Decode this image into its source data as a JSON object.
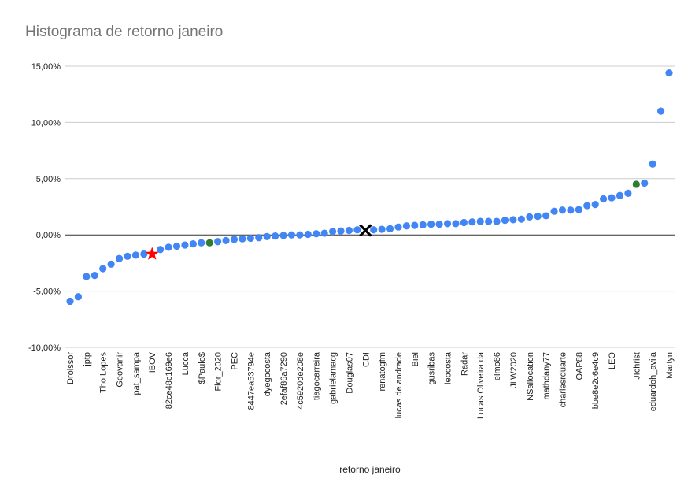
{
  "chart_data": {
    "type": "scatter",
    "title": "Histograma de retorno janeiro",
    "xlabel": "retorno janeiro",
    "ylabel": "",
    "ylim": [
      -10,
      15
    ],
    "yticks": [
      {
        "value": 15,
        "label": "15,00%"
      },
      {
        "value": 10,
        "label": "10,00%"
      },
      {
        "value": 5,
        "label": "5,00%"
      },
      {
        "value": 0,
        "label": "0,00%"
      },
      {
        "value": -5,
        "label": "-5,00%"
      },
      {
        "value": -10,
        "label": "-10,00%"
      }
    ],
    "grid": true,
    "legend": "none",
    "colors": {
      "default": "#4285f4",
      "green": "#2e7d32",
      "ibov": "#ff0000",
      "cdi": "#000000"
    },
    "points": [
      {
        "label": "Droissor",
        "value": -5.9
      },
      {
        "label": "",
        "value": -5.5
      },
      {
        "label": "jptp",
        "value": -3.7
      },
      {
        "label": "",
        "value": -3.6
      },
      {
        "label": "Tho.Lopes",
        "value": -3.0
      },
      {
        "label": "",
        "value": -2.6
      },
      {
        "label": "Geovanir",
        "value": -2.1
      },
      {
        "label": "",
        "value": -1.9
      },
      {
        "label": "pat_sampa",
        "value": -1.8
      },
      {
        "label": "",
        "value": -1.7
      },
      {
        "label": "IBOV",
        "value": -1.7,
        "color": "ibov",
        "marker": "star"
      },
      {
        "label": "",
        "value": -1.3
      },
      {
        "label": "82ce48c169e6",
        "value": -1.1
      },
      {
        "label": "",
        "value": -1.0
      },
      {
        "label": "Lucca",
        "value": -0.9
      },
      {
        "label": "",
        "value": -0.8
      },
      {
        "label": "$Paulo$",
        "value": -0.7
      },
      {
        "label": "",
        "value": -0.7,
        "color": "green"
      },
      {
        "label": "Flor_2020",
        "value": -0.6
      },
      {
        "label": "",
        "value": -0.5
      },
      {
        "label": "PEC",
        "value": -0.4
      },
      {
        "label": "",
        "value": -0.35
      },
      {
        "label": "8447ea53794e",
        "value": -0.3
      },
      {
        "label": "",
        "value": -0.25
      },
      {
        "label": "dyegocosta",
        "value": -0.15
      },
      {
        "label": "",
        "value": -0.1
      },
      {
        "label": "2efaf86a7290",
        "value": -0.05
      },
      {
        "label": "",
        "value": 0.0
      },
      {
        "label": "4c5920de208e",
        "value": 0.0
      },
      {
        "label": "",
        "value": 0.05
      },
      {
        "label": "tiagocarreira",
        "value": 0.1
      },
      {
        "label": "",
        "value": 0.15
      },
      {
        "label": "gabrielamacg",
        "value": 0.3
      },
      {
        "label": "",
        "value": 0.35
      },
      {
        "label": "Douglas07",
        "value": 0.4
      },
      {
        "label": "",
        "value": 0.45
      },
      {
        "label": "CDI",
        "value": 0.4,
        "color": "cdi",
        "marker": "x"
      },
      {
        "label": "",
        "value": 0.45
      },
      {
        "label": "renatogfm",
        "value": 0.5
      },
      {
        "label": "",
        "value": 0.55
      },
      {
        "label": "lucas de andrade",
        "value": 0.7
      },
      {
        "label": "",
        "value": 0.8
      },
      {
        "label": "Biel",
        "value": 0.85
      },
      {
        "label": "",
        "value": 0.9
      },
      {
        "label": "gusribas",
        "value": 0.95
      },
      {
        "label": "",
        "value": 0.95
      },
      {
        "label": "leocosta",
        "value": 1.0
      },
      {
        "label": "",
        "value": 1.0
      },
      {
        "label": "Radar",
        "value": 1.1
      },
      {
        "label": "",
        "value": 1.15
      },
      {
        "label": "Lucas Oliveira da",
        "value": 1.2
      },
      {
        "label": "",
        "value": 1.2
      },
      {
        "label": "elmo86",
        "value": 1.2
      },
      {
        "label": "",
        "value": 1.3
      },
      {
        "label": "JLW2020",
        "value": 1.35
      },
      {
        "label": "",
        "value": 1.4
      },
      {
        "label": "NSallocation",
        "value": 1.6
      },
      {
        "label": "",
        "value": 1.65
      },
      {
        "label": "mathdany77",
        "value": 1.7
      },
      {
        "label": "",
        "value": 2.1
      },
      {
        "label": "charlesrduarte",
        "value": 2.2
      },
      {
        "label": "",
        "value": 2.2
      },
      {
        "label": "OAP88",
        "value": 2.25
      },
      {
        "label": "",
        "value": 2.6
      },
      {
        "label": "bbe8e2c6e4c9",
        "value": 2.7
      },
      {
        "label": "",
        "value": 3.2
      },
      {
        "label": "LEO",
        "value": 3.3
      },
      {
        "label": "",
        "value": 3.5
      },
      {
        "label": "",
        "value": 3.7
      },
      {
        "label": "JIchrist",
        "value": 4.5,
        "color": "green"
      },
      {
        "label": "",
        "value": 4.6
      },
      {
        "label": "eduardoh_avila",
        "value": 6.3
      },
      {
        "label": "",
        "value": 11.0
      },
      {
        "label": "Martyn",
        "value": 14.4
      }
    ]
  }
}
